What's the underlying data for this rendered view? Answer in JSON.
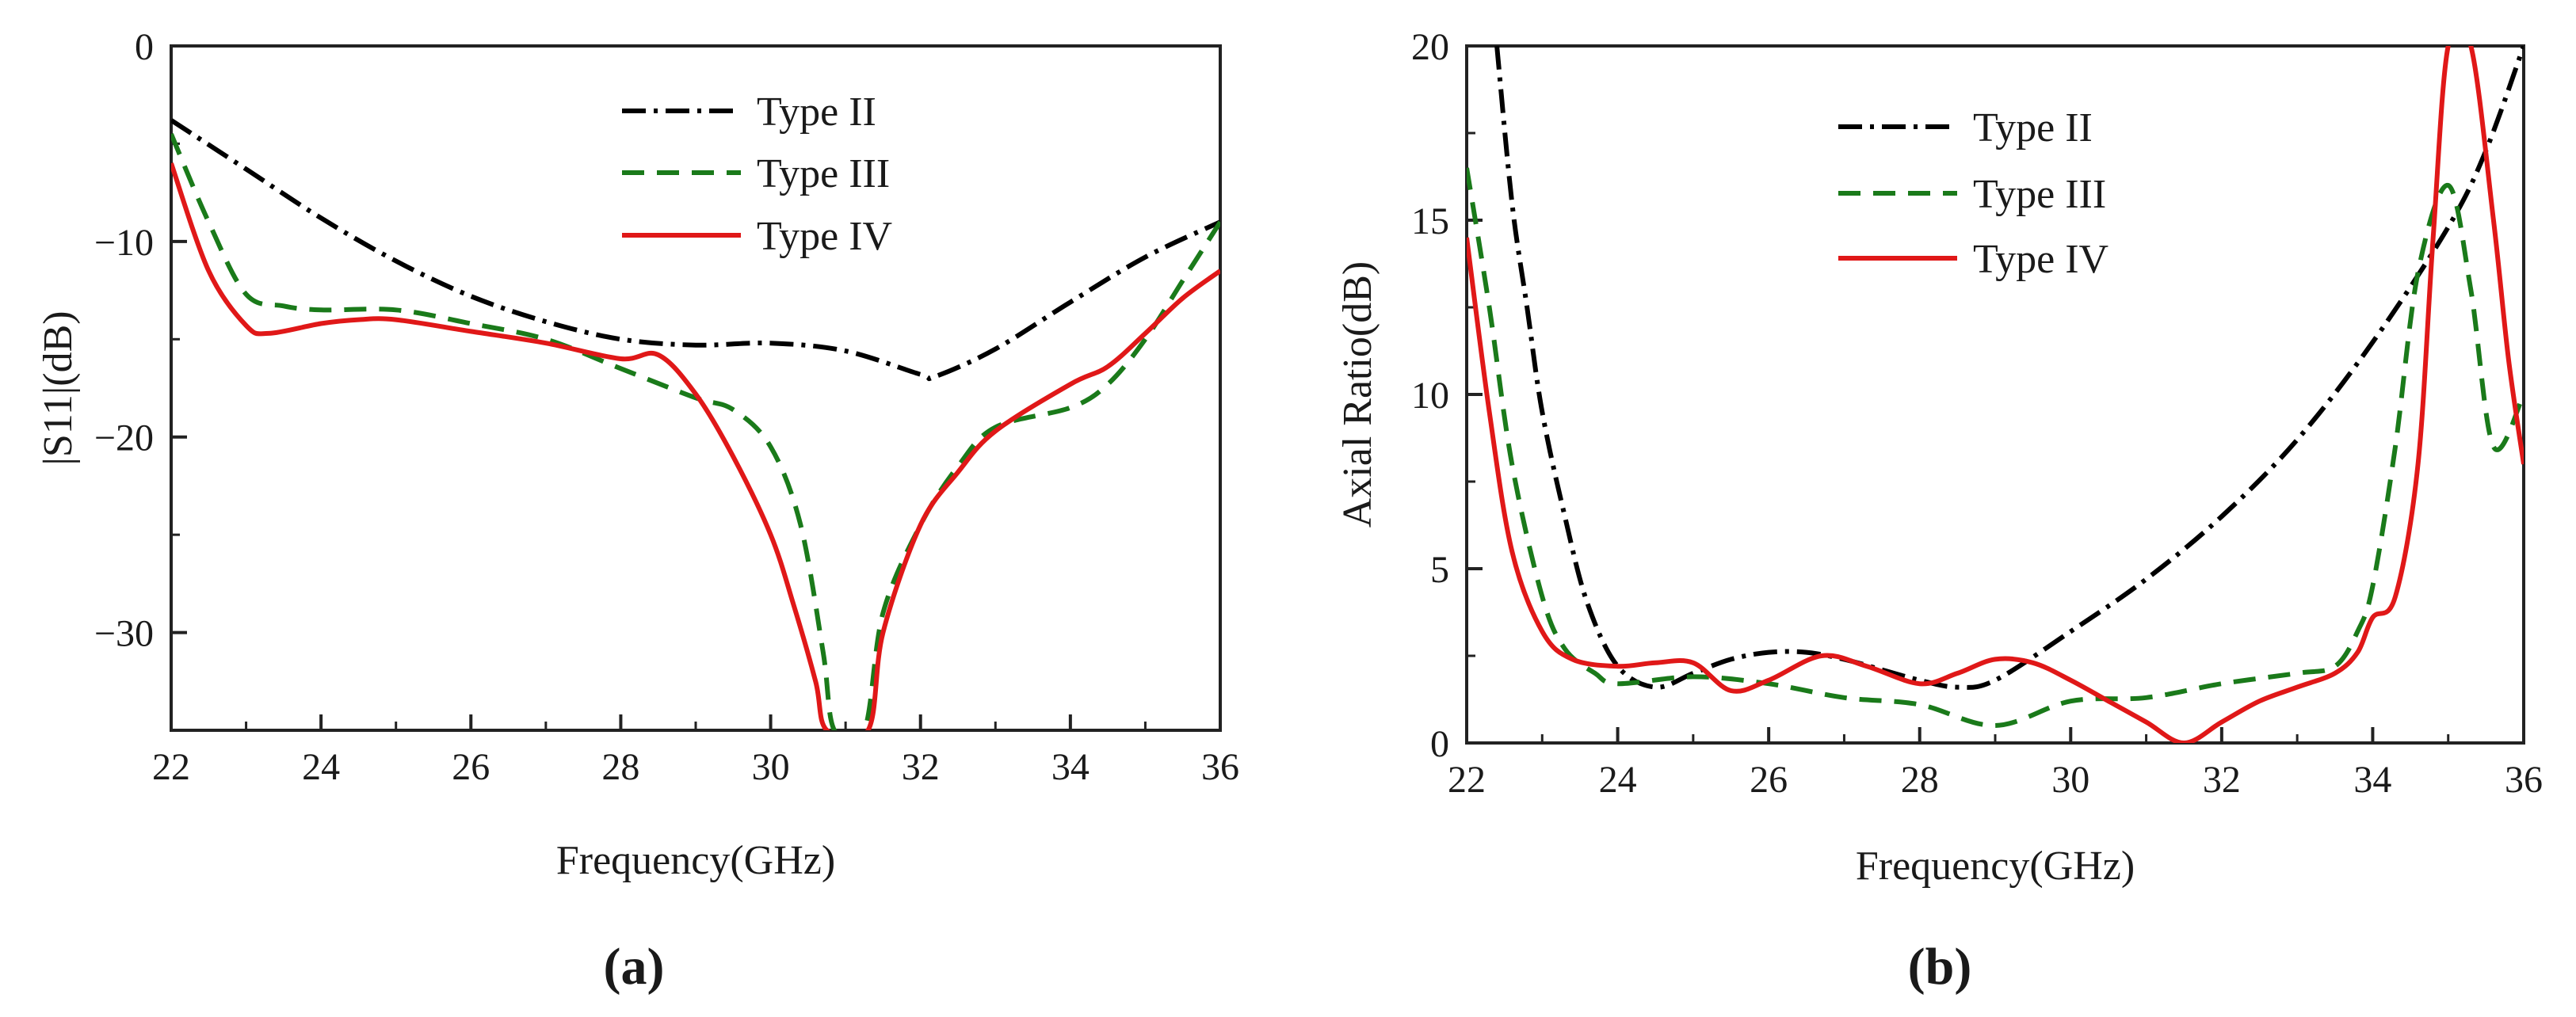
{
  "chart_data": [
    {
      "type": "line",
      "panel_label": "(a)",
      "xlabel": "Frequency(GHz)",
      "ylabel": "|S11|(dB)",
      "xlim": [
        22,
        36
      ],
      "ylim": [
        -35,
        0
      ],
      "xticks": [
        22,
        24,
        26,
        28,
        30,
        32,
        34,
        36
      ],
      "xtick_labels": [
        "22",
        "24",
        "26",
        "28",
        "30",
        "32",
        "34",
        "36"
      ],
      "yticks": [
        0,
        -10,
        -20,
        -30
      ],
      "ytick_labels": [
        "0",
        "−10",
        "−20",
        "−30"
      ],
      "grid": false,
      "legend_position": "top-center",
      "series": [
        {
          "name": "Type II",
          "color": "#000000",
          "style": "dashdot",
          "x": [
            22,
            23,
            24,
            25,
            26,
            27,
            28,
            29,
            30,
            31,
            32,
            32.2,
            33,
            34,
            35,
            36
          ],
          "y": [
            -3.8,
            -6.3,
            -8.8,
            -11.0,
            -12.8,
            -14.1,
            -15.0,
            -15.3,
            -15.2,
            -15.6,
            -16.8,
            -16.9,
            -15.5,
            -13.1,
            -10.8,
            -9.0
          ]
        },
        {
          "name": "Type III",
          "color": "#1a7a1a",
          "style": "dashed",
          "x": [
            22,
            22.5,
            23,
            23.5,
            24,
            25,
            26,
            27,
            28,
            29,
            29.5,
            30,
            30.4,
            30.7,
            30.85,
            31.25,
            31.5,
            32,
            32.5,
            33,
            34,
            34.5,
            35,
            35.5,
            36
          ],
          "y": [
            -4.5,
            -9.0,
            -12.7,
            -13.3,
            -13.5,
            -13.5,
            -14.2,
            -15.0,
            -16.5,
            -18.0,
            -18.6,
            -20.5,
            -24.5,
            -31.0,
            -35.0,
            -35.0,
            -29.0,
            -24.5,
            -21.5,
            -19.5,
            -18.5,
            -17.3,
            -15.0,
            -12.0,
            -9.0
          ]
        },
        {
          "name": "Type IV",
          "color": "#e01818",
          "style": "solid",
          "x": [
            22,
            22.5,
            23,
            23.3,
            24,
            24.5,
            25,
            26,
            27,
            28,
            28.5,
            29,
            29.5,
            30,
            30.3,
            30.6,
            30.75,
            31.3,
            31.5,
            32,
            32.5,
            33,
            34,
            34.5,
            35,
            35.5,
            36
          ],
          "y": [
            -6.0,
            -11.5,
            -14.3,
            -14.7,
            -14.2,
            -14.0,
            -14.0,
            -14.6,
            -15.2,
            -16.0,
            -15.8,
            -17.8,
            -21.0,
            -25.0,
            -28.5,
            -32.5,
            -35.0,
            -35.0,
            -30.0,
            -24.5,
            -21.8,
            -19.7,
            -17.3,
            -16.4,
            -14.7,
            -12.9,
            -11.5
          ]
        }
      ]
    },
    {
      "type": "line",
      "panel_label": "(b)",
      "xlabel": "Frequency(GHz)",
      "ylabel": "Axial Ratio(dB)",
      "xlim": [
        22,
        36
      ],
      "ylim": [
        0,
        20
      ],
      "xticks": [
        22,
        24,
        26,
        28,
        30,
        32,
        34,
        36
      ],
      "xtick_labels": [
        "22",
        "24",
        "26",
        "28",
        "30",
        "32",
        "34",
        "36"
      ],
      "yticks": [
        0,
        5,
        10,
        15,
        20
      ],
      "ytick_labels": [
        "0",
        "5",
        "10",
        "15",
        "20"
      ],
      "grid": false,
      "legend_position": "top-left",
      "series": [
        {
          "name": "Type II",
          "color": "#000000",
          "style": "dashdot",
          "x": [
            22.4,
            22.6,
            22.8,
            23,
            23.3,
            23.6,
            24,
            24.5,
            25,
            25.5,
            26,
            26.5,
            27,
            27.5,
            28,
            28.5,
            29,
            30,
            31,
            32,
            33,
            34,
            35,
            35.5,
            36
          ],
          "y": [
            20.0,
            15.5,
            12.5,
            9.5,
            6.5,
            4.0,
            2.2,
            1.6,
            2.0,
            2.4,
            2.6,
            2.6,
            2.4,
            2.1,
            1.8,
            1.6,
            1.8,
            3.2,
            4.7,
            6.5,
            8.7,
            11.5,
            14.8,
            17.0,
            20.0
          ]
        },
        {
          "name": "Type III",
          "color": "#1a7a1a",
          "style": "dashed",
          "x": [
            22,
            22.3,
            22.6,
            23,
            23.3,
            23.7,
            24,
            25,
            26,
            27,
            28,
            29,
            30,
            31,
            32,
            33,
            33.5,
            33.8,
            34,
            34.3,
            34.6,
            35,
            35.3,
            35.6,
            36
          ],
          "y": [
            16.5,
            12.5,
            8.0,
            4.2,
            2.7,
            2.0,
            1.7,
            1.9,
            1.7,
            1.3,
            1.1,
            0.5,
            1.2,
            1.3,
            1.7,
            2.0,
            2.2,
            3.2,
            4.5,
            8.5,
            13.5,
            16.0,
            13.0,
            8.5,
            10.0
          ]
        },
        {
          "name": "Type IV",
          "color": "#e01818",
          "style": "solid",
          "x": [
            22,
            22.3,
            22.6,
            23,
            23.4,
            24,
            24.5,
            25,
            25.5,
            26,
            26.7,
            27.3,
            28,
            28.5,
            29,
            29.5,
            30,
            30.5,
            31,
            31.5,
            32,
            32.5,
            33,
            33.5,
            33.8,
            34,
            34.3,
            34.6,
            34.8,
            35,
            35.3,
            35.6,
            35.8,
            36
          ],
          "y": [
            14.5,
            9.5,
            5.5,
            3.2,
            2.4,
            2.2,
            2.3,
            2.3,
            1.5,
            1.8,
            2.5,
            2.2,
            1.7,
            2.0,
            2.4,
            2.3,
            1.8,
            1.2,
            0.6,
            0.0,
            0.6,
            1.2,
            1.6,
            2.0,
            2.6,
            3.6,
            4.2,
            8.0,
            14.5,
            20.0,
            20.0,
            15.0,
            11.0,
            8.0
          ]
        }
      ]
    }
  ]
}
